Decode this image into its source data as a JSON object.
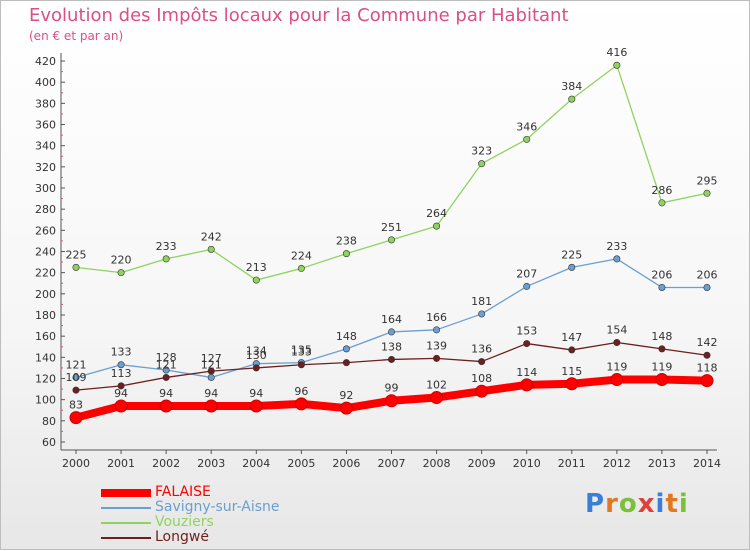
{
  "title": "Evolution des Impôts locaux pour la Commune par Habitant",
  "subtitle": "(en € et par an)",
  "logo_text": "Proxiti",
  "chart_data": {
    "type": "line",
    "x": [
      "2000",
      "2001",
      "2002",
      "2003",
      "2004",
      "2005",
      "2006",
      "2007",
      "2008",
      "2009",
      "2010",
      "2011",
      "2012",
      "2013",
      "2014"
    ],
    "ylim": [
      60,
      420
    ],
    "yticks": [
      60,
      80,
      100,
      120,
      140,
      160,
      180,
      200,
      220,
      240,
      260,
      280,
      300,
      320,
      340,
      360,
      380,
      400,
      420
    ],
    "grid": false,
    "legend_position": "bottom-left",
    "series": [
      {
        "name": "FALAISE",
        "color": "#ff0000",
        "values": [
          83,
          94,
          94,
          94,
          94,
          96,
          92,
          99,
          102,
          108,
          114,
          115,
          119,
          119,
          118
        ]
      },
      {
        "name": "Savigny-sur-Aisne",
        "color": "#6a9fd1",
        "values": [
          121,
          133,
          128,
          121,
          134,
          135,
          148,
          164,
          166,
          181,
          207,
          225,
          233,
          206,
          206
        ]
      },
      {
        "name": "Vouziers",
        "color": "#8fd35e",
        "values": [
          225,
          220,
          233,
          242,
          213,
          224,
          238,
          251,
          264,
          323,
          346,
          384,
          416,
          286,
          295
        ]
      },
      {
        "name": "Longwé",
        "color": "#6e1f1f",
        "values": [
          109,
          113,
          121,
          127,
          130,
          133,
          135,
          138,
          139,
          136,
          153,
          147,
          154,
          148,
          142
        ]
      }
    ],
    "data_labels": [
      {
        "series": 0,
        "values": [
          83,
          94,
          94,
          94,
          94,
          96,
          92,
          99,
          102,
          108,
          114,
          115,
          119,
          119,
          118
        ]
      },
      {
        "series": 1,
        "values": [
          121,
          133,
          128,
          121,
          134,
          135,
          148,
          164,
          166,
          181,
          207,
          225,
          233,
          206,
          206
        ]
      },
      {
        "series": 2,
        "values": [
          225,
          220,
          233,
          242,
          213,
          224,
          238,
          251,
          264,
          323,
          346,
          384,
          416,
          286,
          295
        ]
      },
      {
        "series": 3,
        "values": [
          109,
          113,
          121,
          127,
          130,
          133,
          null,
          138,
          139,
          136,
          153,
          147,
          154,
          148,
          142
        ]
      }
    ]
  }
}
